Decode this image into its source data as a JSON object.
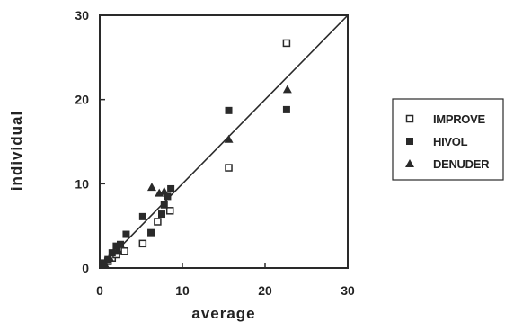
{
  "chart_data": {
    "type": "scatter",
    "title": "",
    "xlabel": "average",
    "ylabel": "individual",
    "xlim": [
      0,
      30
    ],
    "ylim": [
      0,
      30
    ],
    "xticks": [
      0,
      10,
      20,
      30
    ],
    "yticks": [
      0,
      10,
      20,
      30
    ],
    "grid": false,
    "legend_position": "right",
    "identity_line": {
      "x": [
        0,
        30
      ],
      "y": [
        0,
        30
      ]
    },
    "series": [
      {
        "name": "IMPROVE",
        "marker": "open-square",
        "points": [
          [
            0.5,
            0.4
          ],
          [
            1.0,
            0.8
          ],
          [
            1.5,
            1.2
          ],
          [
            2.0,
            1.6
          ],
          [
            2.5,
            2.2
          ],
          [
            3.0,
            2.0
          ],
          [
            5.2,
            2.9
          ],
          [
            7.0,
            5.5
          ],
          [
            8.5,
            6.8
          ],
          [
            15.6,
            11.9
          ],
          [
            22.6,
            26.7
          ]
        ]
      },
      {
        "name": "HIVOL",
        "marker": "filled-square",
        "points": [
          [
            0.5,
            0.6
          ],
          [
            1.0,
            1.0
          ],
          [
            1.5,
            1.8
          ],
          [
            2.0,
            2.6
          ],
          [
            2.5,
            2.8
          ],
          [
            3.2,
            4.0
          ],
          [
            5.2,
            6.1
          ],
          [
            6.2,
            4.2
          ],
          [
            7.5,
            6.4
          ],
          [
            7.8,
            7.5
          ],
          [
            8.2,
            8.5
          ],
          [
            8.6,
            9.4
          ],
          [
            15.6,
            18.7
          ],
          [
            22.6,
            18.8
          ]
        ]
      },
      {
        "name": "DENUDER",
        "marker": "filled-triangle",
        "points": [
          [
            0.6,
            0.5
          ],
          [
            1.2,
            1.2
          ],
          [
            2.2,
            2.1
          ],
          [
            6.3,
            9.6
          ],
          [
            7.2,
            8.9
          ],
          [
            7.8,
            9.1
          ],
          [
            15.6,
            15.3
          ],
          [
            22.7,
            21.2
          ]
        ]
      }
    ]
  },
  "colors": {
    "ink": "#2a2a2a",
    "background": "#ffffff"
  }
}
